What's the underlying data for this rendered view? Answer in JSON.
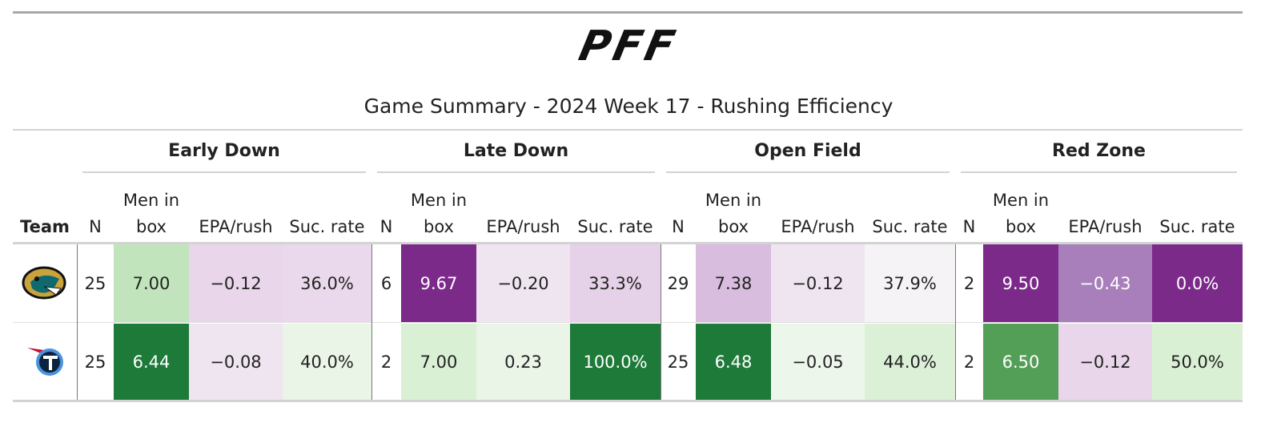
{
  "header": {
    "logo": "PFF",
    "title": "Game Summary - 2024 Week 17 - Rushing Efficiency"
  },
  "table": {
    "groups": [
      "Early Down",
      "Late Down",
      "Open Field",
      "Red Zone"
    ],
    "team_label": "Team",
    "columns": [
      "N",
      "Men in box",
      "EPA/rush",
      "Suc. rate"
    ],
    "rows": [
      {
        "cells": [
          {
            "text": "25",
            "fill": "#ffffff"
          },
          {
            "text": "7.00",
            "fill": "#c2e4bd"
          },
          {
            "text": "−0.12",
            "fill": "#e9d6ea"
          },
          {
            "text": "36.0%",
            "fill": "#ead9ec"
          },
          {
            "text": "6",
            "fill": "#ffffff"
          },
          {
            "text": "9.67",
            "fill": "#7b2a8a"
          },
          {
            "text": "−0.20",
            "fill": "#efe5f0"
          },
          {
            "text": "33.3%",
            "fill": "#e6d2e8"
          },
          {
            "text": "29",
            "fill": "#ffffff"
          },
          {
            "text": "7.38",
            "fill": "#d8bddf"
          },
          {
            "text": "−0.12",
            "fill": "#efe5f0"
          },
          {
            "text": "37.9%",
            "fill": "#f5f3f5"
          },
          {
            "text": "2",
            "fill": "#ffffff"
          },
          {
            "text": "9.50",
            "fill": "#7b2a8a"
          },
          {
            "text": "−0.43",
            "fill": "#a97fbb"
          },
          {
            "text": "0.0%",
            "fill": "#7b2a8a"
          }
        ]
      },
      {
        "cells": [
          {
            "text": "25",
            "fill": "#ffffff"
          },
          {
            "text": "6.44",
            "fill": "#1e7a38"
          },
          {
            "text": "−0.08",
            "fill": "#efe5f0"
          },
          {
            "text": "40.0%",
            "fill": "#eaf5e8"
          },
          {
            "text": "2",
            "fill": "#ffffff"
          },
          {
            "text": "7.00",
            "fill": "#d9f0d4"
          },
          {
            "text": "0.23",
            "fill": "#eaf5e8"
          },
          {
            "text": "100.0%",
            "fill": "#1e7a38"
          },
          {
            "text": "25",
            "fill": "#ffffff"
          },
          {
            "text": "6.48",
            "fill": "#1e7a38"
          },
          {
            "text": "−0.05",
            "fill": "#edf6eb"
          },
          {
            "text": "44.0%",
            "fill": "#dcf0d7"
          },
          {
            "text": "2",
            "fill": "#ffffff"
          },
          {
            "text": "6.50",
            "fill": "#549f58"
          },
          {
            "text": "−0.12",
            "fill": "#e9d6ea"
          },
          {
            "text": "50.0%",
            "fill": "#d9f0d4"
          }
        ]
      }
    ]
  }
}
